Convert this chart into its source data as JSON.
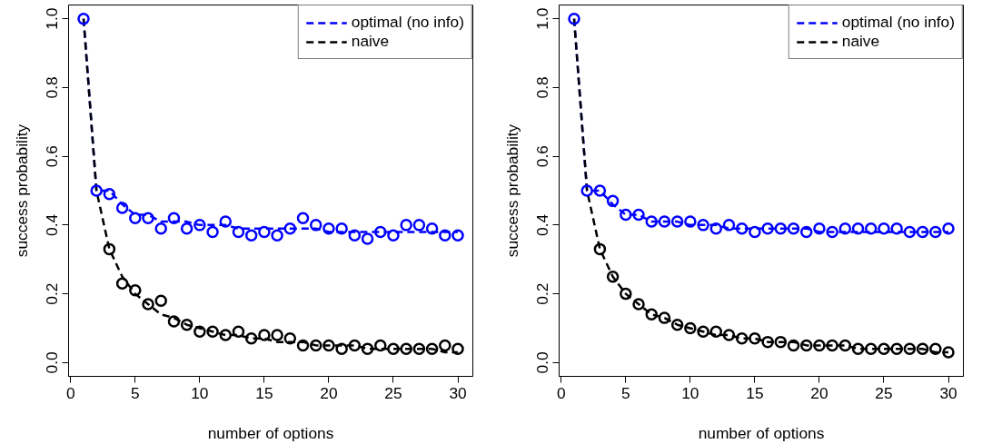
{
  "chart_data": [
    {
      "type": "line",
      "xlabel": "number of options",
      "ylabel": "success probability",
      "xlim": [
        -0.16,
        31.16
      ],
      "ylim": [
        -0.04,
        1.04
      ],
      "xticks": [
        0,
        5,
        10,
        15,
        20,
        25,
        30
      ],
      "yticks": [
        {
          "value": 0,
          "label": "0.0"
        },
        {
          "value": 0.2,
          "label": "0.2"
        },
        {
          "value": 0.4,
          "label": "0.4"
        },
        {
          "value": 0.6,
          "label": "0.6"
        },
        {
          "value": 0.8,
          "label": "0.8"
        },
        {
          "value": 1,
          "label": "1.0"
        }
      ],
      "grid": false,
      "legend": "top right",
      "x": [
        1,
        2,
        3,
        4,
        5,
        6,
        7,
        8,
        9,
        10,
        11,
        12,
        13,
        14,
        15,
        16,
        17,
        18,
        19,
        20,
        21,
        22,
        23,
        24,
        25,
        26,
        27,
        28,
        29,
        30
      ],
      "series": [
        {
          "name": "optimal (no info)",
          "color": "#0000ff",
          "line_style": "dashed",
          "marker": "none",
          "values": [
            1,
            0.5,
            0.5,
            0.46,
            0.43,
            0.43,
            0.41,
            0.41,
            0.41,
            0.4,
            0.4,
            0.4,
            0.39,
            0.39,
            0.39,
            0.39,
            0.39,
            0.39,
            0.39,
            0.38,
            0.38,
            0.38,
            0.38,
            0.38,
            0.38,
            0.38,
            0.38,
            0.38,
            0.38,
            0.38
          ]
        },
        {
          "name": "naive",
          "color": "#000000",
          "line_style": "dashed",
          "marker": "none",
          "values": [
            1,
            0.5,
            0.33,
            0.25,
            0.2,
            0.17,
            0.14,
            0.13,
            0.11,
            0.1,
            0.09,
            0.08,
            0.08,
            0.07,
            0.07,
            0.06,
            0.06,
            0.06,
            0.05,
            0.05,
            0.05,
            0.05,
            0.04,
            0.04,
            0.04,
            0.04,
            0.04,
            0.04,
            0.03,
            0.03
          ]
        },
        {
          "type": "scatter",
          "color": "#000000",
          "marker": "circle",
          "values": [
            null,
            null,
            0.33,
            0.23,
            0.21,
            0.17,
            0.18,
            0.12,
            0.11,
            0.09,
            0.09,
            0.08,
            0.09,
            0.07,
            0.08,
            0.08,
            0.07,
            0.05,
            0.05,
            0.05,
            0.04,
            0.05,
            0.04,
            0.05,
            0.04,
            0.04,
            0.04,
            0.04,
            0.05,
            0.04
          ]
        },
        {
          "type": "scatter",
          "color": "#0000ff",
          "marker": "circle",
          "values": [
            1,
            0.5,
            0.49,
            0.45,
            0.42,
            0.42,
            0.39,
            0.42,
            0.39,
            0.4,
            0.38,
            0.41,
            0.38,
            0.37,
            0.38,
            0.37,
            0.39,
            0.42,
            0.4,
            0.39,
            0.39,
            0.37,
            0.36,
            0.38,
            0.37,
            0.4,
            0.4,
            0.39,
            0.37,
            0.37
          ]
        }
      ]
    },
    {
      "type": "line",
      "xlabel": "number of options",
      "ylabel": "success probability",
      "xlim": [
        -0.16,
        31.16
      ],
      "ylim": [
        -0.04,
        1.04
      ],
      "xticks": [
        0,
        5,
        10,
        15,
        20,
        25,
        30
      ],
      "yticks": [
        {
          "value": 0,
          "label": "0.0"
        },
        {
          "value": 0.2,
          "label": "0.2"
        },
        {
          "value": 0.4,
          "label": "0.4"
        },
        {
          "value": 0.6,
          "label": "0.6"
        },
        {
          "value": 0.8,
          "label": "0.8"
        },
        {
          "value": 1,
          "label": "1.0"
        }
      ],
      "grid": false,
      "legend": "top right",
      "x": [
        1,
        2,
        3,
        4,
        5,
        6,
        7,
        8,
        9,
        10,
        11,
        12,
        13,
        14,
        15,
        16,
        17,
        18,
        19,
        20,
        21,
        22,
        23,
        24,
        25,
        26,
        27,
        28,
        29,
        30
      ],
      "series": [
        {
          "name": "optimal (no info)",
          "color": "#0000ff",
          "line_style": "dashed",
          "marker": "none",
          "values": [
            1,
            0.5,
            0.5,
            0.46,
            0.43,
            0.43,
            0.41,
            0.41,
            0.41,
            0.4,
            0.4,
            0.4,
            0.39,
            0.39,
            0.39,
            0.39,
            0.39,
            0.39,
            0.39,
            0.38,
            0.38,
            0.38,
            0.38,
            0.38,
            0.38,
            0.38,
            0.38,
            0.38,
            0.38,
            0.38
          ]
        },
        {
          "name": "naive",
          "color": "#000000",
          "line_style": "dashed",
          "marker": "none",
          "values": [
            1,
            0.5,
            0.33,
            0.25,
            0.2,
            0.17,
            0.14,
            0.13,
            0.11,
            0.1,
            0.09,
            0.08,
            0.08,
            0.07,
            0.07,
            0.06,
            0.06,
            0.06,
            0.05,
            0.05,
            0.05,
            0.05,
            0.04,
            0.04,
            0.04,
            0.04,
            0.04,
            0.04,
            0.03,
            0.03
          ]
        },
        {
          "type": "scatter",
          "color": "#000000",
          "marker": "circle",
          "values": [
            null,
            null,
            0.33,
            0.25,
            0.2,
            0.17,
            0.14,
            0.13,
            0.11,
            0.1,
            0.09,
            0.09,
            0.08,
            0.07,
            0.07,
            0.06,
            0.06,
            0.05,
            0.05,
            0.05,
            0.05,
            0.05,
            0.04,
            0.04,
            0.04,
            0.04,
            0.04,
            0.04,
            0.04,
            0.03
          ]
        },
        {
          "type": "scatter",
          "color": "#0000ff",
          "marker": "circle",
          "values": [
            1,
            0.5,
            0.5,
            0.47,
            0.43,
            0.43,
            0.41,
            0.41,
            0.41,
            0.41,
            0.4,
            0.39,
            0.4,
            0.39,
            0.38,
            0.39,
            0.39,
            0.39,
            0.38,
            0.39,
            0.38,
            0.39,
            0.39,
            0.39,
            0.39,
            0.39,
            0.38,
            0.38,
            0.38,
            0.39
          ]
        }
      ]
    }
  ]
}
